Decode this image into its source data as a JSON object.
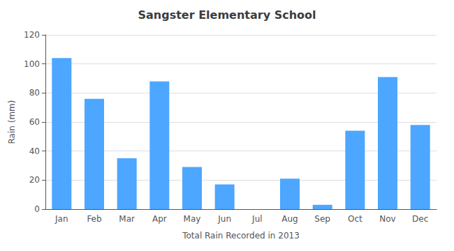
{
  "chart_data": {
    "type": "bar",
    "title": "Sangster Elementary School",
    "xlabel": "Total Rain Recorded in 2013",
    "ylabel": "Rain (mm)",
    "categories": [
      "Jan",
      "Feb",
      "Mar",
      "Apr",
      "May",
      "Jun",
      "Jul",
      "Aug",
      "Sep",
      "Oct",
      "Nov",
      "Dec"
    ],
    "values": [
      104,
      76,
      35,
      88,
      29,
      17,
      0,
      21,
      3,
      54,
      91,
      58
    ],
    "color": "#4da6ff",
    "ylim": [
      0,
      120
    ],
    "yticks": [
      0,
      20,
      40,
      60,
      80,
      100,
      120
    ],
    "grid": true
  }
}
